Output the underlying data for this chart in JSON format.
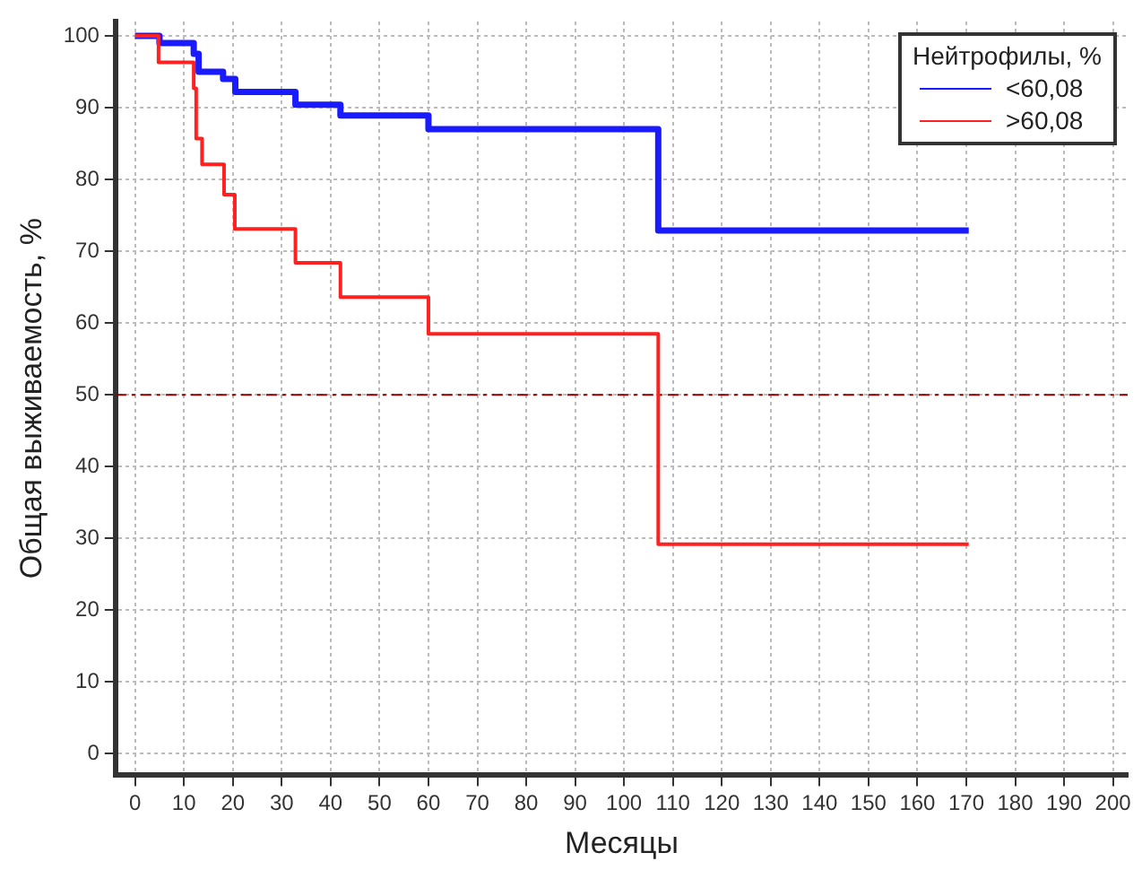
{
  "chart_data": {
    "type": "step",
    "xlabel": "Месяцы",
    "ylabel": "Общая выживаемость, %",
    "legend_title": "Нейтрофилы, %",
    "series": [
      {
        "name": "<60,08",
        "color": "#1a1aff",
        "x": [
          0,
          5,
          12,
          13,
          18,
          20.5,
          32.8,
          42,
          60,
          107,
          170.5
        ],
        "values": [
          100,
          99,
          97.5,
          95,
          94,
          92.2,
          90.4,
          88.9,
          87,
          72.9,
          72.9
        ]
      },
      {
        "name": ">60,08",
        "color": "#ff2020",
        "x": [
          0,
          4.8,
          12,
          12.5,
          13.7,
          18.2,
          20.4,
          32.8,
          42,
          60,
          107,
          170.5
        ],
        "values": [
          100,
          96.3,
          92.7,
          85.7,
          82.1,
          77.9,
          73.1,
          68.4,
          63.6,
          58.5,
          29.2,
          29.2
        ]
      }
    ],
    "xlim": [
      -4,
      203
    ],
    "ylim": [
      -3,
      102
    ],
    "xticks": [
      0,
      10,
      20,
      30,
      40,
      50,
      60,
      70,
      80,
      90,
      100,
      110,
      120,
      130,
      140,
      150,
      160,
      170,
      180,
      190,
      200
    ],
    "yticks": [
      0,
      10,
      20,
      30,
      40,
      50,
      60,
      70,
      80,
      90,
      100
    ],
    "ref_lines": [
      {
        "axis": "y",
        "value": 50,
        "color": "#8b0000",
        "line_style": "dashdot"
      }
    ],
    "grid": true,
    "legend": "top right",
    "marker": "none",
    "line_style": "solid"
  }
}
